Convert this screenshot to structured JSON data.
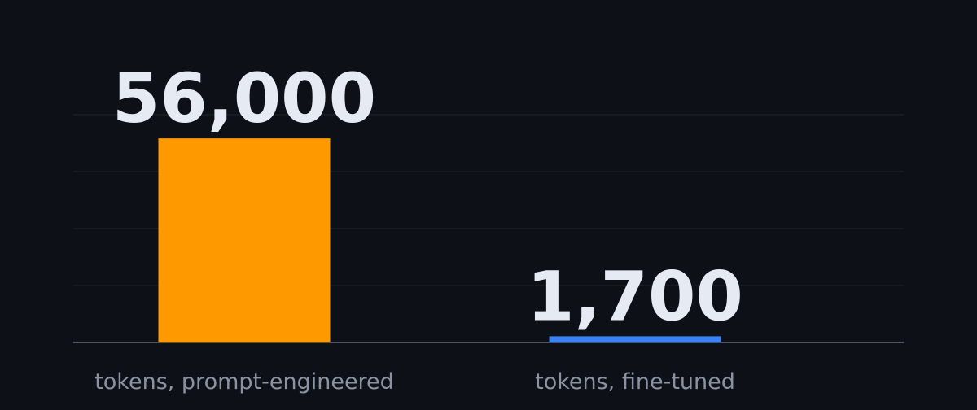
{
  "chart_data": {
    "type": "bar",
    "categories": [
      "tokens, prompt-engineered",
      "tokens, fine-tuned"
    ],
    "values": [
      56000,
      1700
    ],
    "value_labels": [
      "56,000",
      "1,700"
    ],
    "colors": [
      "#ff9900",
      "#3b82f6"
    ],
    "ylim": [
      0,
      62500
    ],
    "yticks": [
      0,
      15625,
      31250,
      46875,
      62500
    ],
    "grid": true
  }
}
